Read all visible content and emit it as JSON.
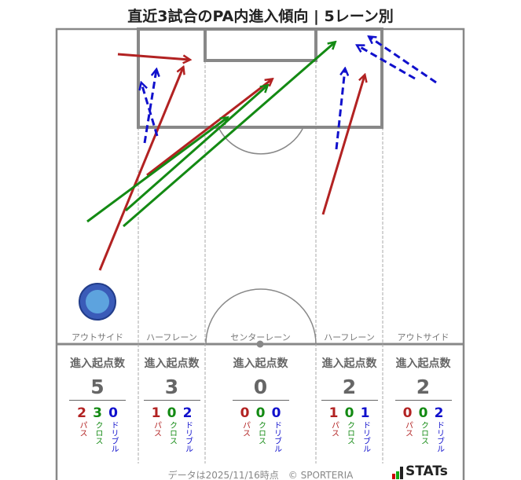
{
  "title": "直近3試合のPA内進入傾向 | 5レーン別",
  "lanes": [
    {
      "name": "アウトサイド",
      "header": "進入起点数",
      "total": "5",
      "pass": "2",
      "cross": "3",
      "dribble": "0"
    },
    {
      "name": "ハーフレーン",
      "header": "進入起点数",
      "total": "3",
      "pass": "1",
      "cross": "0",
      "dribble": "2"
    },
    {
      "name": "センターレーン",
      "header": "進入起点数",
      "total": "0",
      "pass": "0",
      "cross": "0",
      "dribble": "0"
    },
    {
      "name": "ハーフレーン",
      "header": "進入起点数",
      "total": "2",
      "pass": "1",
      "cross": "0",
      "dribble": "1"
    },
    {
      "name": "アウトサイド",
      "header": "進入起点数",
      "total": "2",
      "pass": "0",
      "cross": "0",
      "dribble": "2"
    }
  ],
  "labels": {
    "pass": "パス",
    "cross": "クロス",
    "dribble": "ドリブル"
  },
  "colors": {
    "pass": "#b22222",
    "cross": "#138a13",
    "dribble": "#1010cc"
  },
  "footer": "データは2025/11/16時点　© SPORTERIA",
  "brand": "STATs",
  "chart_data": {
    "type": "pitch-arrows",
    "title": "直近3試合のPA内進入傾向 | 5レーン別",
    "series": [
      {
        "name": "パス",
        "count": 4
      },
      {
        "name": "クロス",
        "count": 3
      },
      {
        "name": "ドリブル",
        "count": 5
      }
    ]
  }
}
